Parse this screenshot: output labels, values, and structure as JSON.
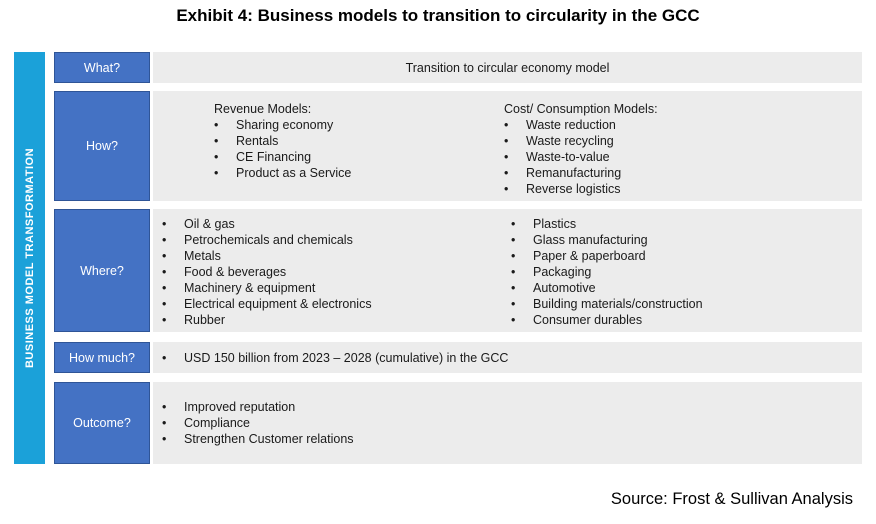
{
  "title": "Exhibit 4: Business models to transition to circularity in the GCC",
  "side_label": "BUSINESS MODEL TRANSFORMATION",
  "colors": {
    "side_bar": "#1ba1d9",
    "label_box": "#4472c4",
    "content_box": "#ececec"
  },
  "rows": {
    "what": {
      "label": "What?",
      "text": "Transition to circular economy model"
    },
    "how": {
      "label": "How?",
      "revenue": {
        "heading": "Revenue Models:",
        "items": [
          "Sharing economy",
          "Rentals",
          "CE Financing",
          "Product as a Service"
        ]
      },
      "cost": {
        "heading": "Cost/ Consumption Models:",
        "items": [
          "Waste reduction",
          "Waste recycling",
          "Waste-to-value",
          "Remanufacturing",
          "Reverse logistics"
        ]
      }
    },
    "where": {
      "label": "Where?",
      "left": [
        "Oil & gas",
        "Petrochemicals and chemicals",
        "Metals",
        "Food & beverages",
        "Machinery & equipment",
        "Electrical equipment  & electronics",
        "Rubber"
      ],
      "right": [
        "Plastics",
        "Glass manufacturing",
        "Paper & paperboard",
        "Packaging",
        "Automotive",
        "Building materials/construction",
        "Consumer durables"
      ]
    },
    "how_much": {
      "label": "How much?",
      "items": [
        "USD 150 billion from 2023 – 2028 (cumulative)  in the GCC"
      ]
    },
    "outcome": {
      "label": "Outcome?",
      "items": [
        "Improved reputation",
        "Compliance",
        "Strengthen Customer relations"
      ]
    }
  },
  "source": "Source: Frost & Sullivan Analysis"
}
